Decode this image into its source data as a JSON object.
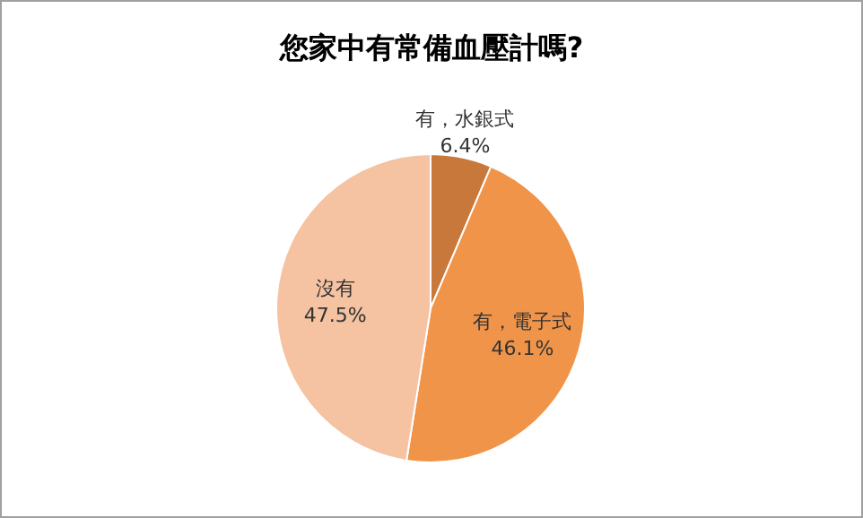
{
  "chart_data": {
    "type": "pie",
    "title": "您家中有常備血壓計嗎?",
    "categories": [
      "有，水銀式",
      "有，電子式",
      "沒有"
    ],
    "values": [
      6.4,
      46.1,
      47.5
    ],
    "colors": [
      "#c8783a",
      "#f0944a",
      "#f5c2a2"
    ],
    "value_labels": [
      "6.4%",
      "46.1%",
      "47.5%"
    ]
  }
}
